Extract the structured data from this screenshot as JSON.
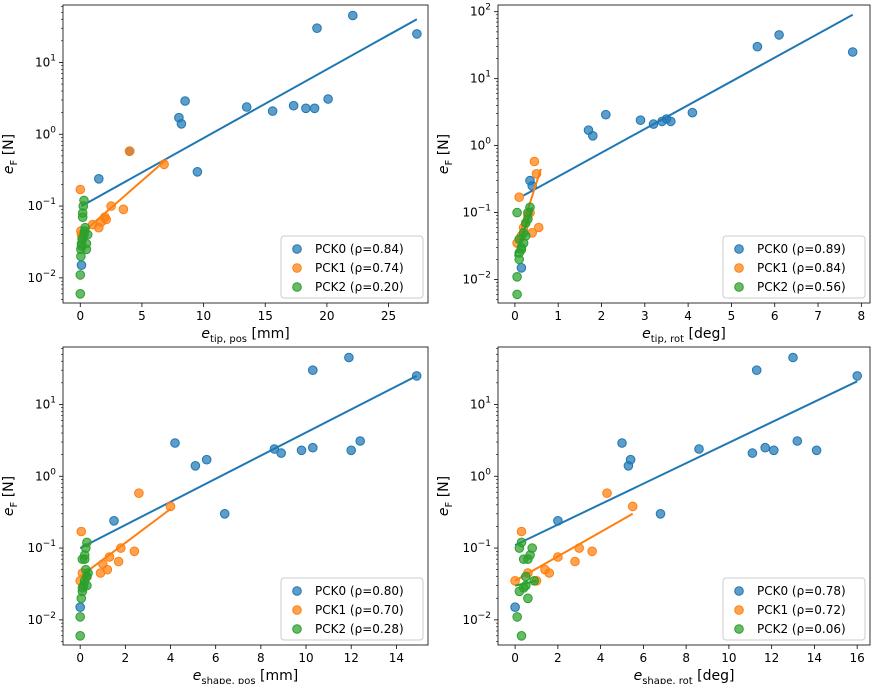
{
  "chart_data": [
    {
      "type": "scatter",
      "xlabel": {
        "base": "e",
        "sub": "tip, pos",
        "unit": " [mm]"
      },
      "ylabel": {
        "base": "e",
        "sub": "F",
        "unit": " [N]"
      },
      "xlim": [
        -1.4,
        28.2
      ],
      "xticks": [
        0,
        5,
        10,
        15,
        20,
        25
      ],
      "ylim_log10": [
        -2.35,
        1.8
      ],
      "yticks_exp": [
        -2,
        -1,
        0,
        1
      ],
      "legend_position": "lower-right",
      "series": [
        {
          "name": "PCK0",
          "label": "PCK0 (ρ=0.84)",
          "color": "#1f77b4",
          "x": [
            0.1,
            1.5,
            4.0,
            8.0,
            8.2,
            8.5,
            9.5,
            13.5,
            15.6,
            17.3,
            18.3,
            19.0,
            19.2,
            20.1,
            22.1,
            27.3
          ],
          "y": [
            0.015,
            0.24,
            0.58,
            1.7,
            1.4,
            2.9,
            0.3,
            2.4,
            2.1,
            2.5,
            2.3,
            2.3,
            30.0,
            3.1,
            45.0,
            25.0
          ],
          "fit_x": [
            0.1,
            27.3
          ],
          "fit_y": [
            0.1,
            40
          ]
        },
        {
          "name": "PCK1",
          "label": "PCK1 (ρ=0.74)",
          "color": "#ff7f0e",
          "x": [
            0.0,
            0.05,
            0.1,
            0.2,
            1.0,
            1.5,
            1.7,
            2.0,
            2.1,
            2.5,
            3.5,
            4.0,
            6.8
          ],
          "y": [
            0.17,
            0.045,
            0.04,
            0.035,
            0.055,
            0.05,
            0.06,
            0.07,
            0.065,
            0.1,
            0.09,
            0.58,
            0.38
          ],
          "fit_x": [
            0.0,
            7.0
          ],
          "fit_y": [
            0.04,
            0.45
          ]
        },
        {
          "name": "PCK2",
          "label": "PCK2 (ρ=0.20)",
          "color": "#2ca02c",
          "x": [
            0.0,
            0.0,
            0.05,
            0.05,
            0.1,
            0.1,
            0.15,
            0.2,
            0.2,
            0.25,
            0.3,
            0.3,
            0.35,
            0.4,
            0.5,
            0.5,
            0.6
          ],
          "y": [
            0.006,
            0.011,
            0.02,
            0.025,
            0.028,
            0.03,
            0.035,
            0.07,
            0.08,
            0.1,
            0.12,
            0.04,
            0.045,
            0.05,
            0.025,
            0.03,
            0.04
          ],
          "fit_x": [
            0.0,
            0.6
          ],
          "fit_y": [
            0.03,
            0.045
          ]
        }
      ]
    },
    {
      "type": "scatter",
      "xlabel": {
        "base": "e",
        "sub": "tip, rot",
        "unit": " [deg]"
      },
      "ylabel": {
        "base": "e",
        "sub": "F",
        "unit": " [N]"
      },
      "xlim": [
        -0.39,
        8.2
      ],
      "xticks": [
        0,
        1,
        2,
        3,
        4,
        5,
        6,
        7,
        8
      ],
      "ylim_log10": [
        -2.35,
        2.1
      ],
      "yticks_exp": [
        -2,
        -1,
        0,
        1,
        2
      ],
      "legend_position": "lower-right",
      "series": [
        {
          "name": "PCK0",
          "label": "PCK0 (ρ=0.89)",
          "color": "#1f77b4",
          "x": [
            0.15,
            0.35,
            0.4,
            1.7,
            1.8,
            2.1,
            2.9,
            3.2,
            3.4,
            3.5,
            3.6,
            4.1,
            5.6,
            6.1,
            7.8
          ],
          "y": [
            0.015,
            0.3,
            0.25,
            1.7,
            1.4,
            2.9,
            2.4,
            2.1,
            2.3,
            2.5,
            2.3,
            3.1,
            30.0,
            45.0,
            25.0
          ],
          "fit_x": [
            0.2,
            7.8
          ],
          "fit_y": [
            0.18,
            90
          ]
        },
        {
          "name": "PCK1",
          "label": "PCK1 (ρ=0.84)",
          "color": "#ff7f0e",
          "x": [
            0.05,
            0.1,
            0.15,
            0.2,
            0.25,
            0.3,
            0.35,
            0.4,
            0.45,
            0.5,
            0.55
          ],
          "y": [
            0.035,
            0.17,
            0.045,
            0.06,
            0.07,
            0.09,
            0.1,
            0.05,
            0.58,
            0.38,
            0.06
          ],
          "fit_x": [
            0.05,
            0.6
          ],
          "fit_y": [
            0.035,
            0.45
          ]
        },
        {
          "name": "PCK2",
          "label": "PCK2 (ρ=0.56)",
          "color": "#2ca02c",
          "x": [
            0.05,
            0.05,
            0.1,
            0.1,
            0.15,
            0.15,
            0.2,
            0.25,
            0.3,
            0.3,
            0.35,
            0.05,
            0.1,
            0.2,
            0.25
          ],
          "y": [
            0.006,
            0.011,
            0.02,
            0.025,
            0.028,
            0.03,
            0.035,
            0.07,
            0.08,
            0.1,
            0.12,
            0.1,
            0.04,
            0.05,
            0.045
          ],
          "fit_x": [
            0.0,
            0.4
          ],
          "fit_y": [
            0.022,
            0.12
          ]
        }
      ]
    },
    {
      "type": "scatter",
      "xlabel": {
        "base": "e",
        "sub": "shape, pos",
        "unit": " [mm]"
      },
      "ylabel": {
        "base": "e",
        "sub": "F",
        "unit": " [N]"
      },
      "xlim": [
        -0.76,
        15.4
      ],
      "xticks": [
        0,
        2,
        4,
        6,
        8,
        10,
        12,
        14
      ],
      "ylim_log10": [
        -2.35,
        1.8
      ],
      "yticks_exp": [
        -2,
        -1,
        0,
        1
      ],
      "legend_position": "lower-right",
      "series": [
        {
          "name": "PCK0",
          "label": "PCK0 (ρ=0.80)",
          "color": "#1f77b4",
          "x": [
            0.0,
            1.5,
            4.2,
            5.1,
            5.6,
            6.4,
            8.6,
            8.9,
            9.8,
            10.3,
            10.3,
            12.0,
            11.9,
            12.4,
            14.9
          ],
          "y": [
            0.015,
            0.24,
            2.9,
            1.4,
            1.7,
            0.3,
            2.4,
            2.1,
            2.3,
            2.5,
            30.0,
            2.3,
            45.0,
            3.1,
            25.0
          ],
          "fit_x": [
            0.0,
            14.9
          ],
          "fit_y": [
            0.1,
            25
          ]
        },
        {
          "name": "PCK1",
          "label": "PCK1 (ρ=0.70)",
          "color": "#ff7f0e",
          "x": [
            0.0,
            0.05,
            0.1,
            0.3,
            0.9,
            1.0,
            1.2,
            1.3,
            1.7,
            1.8,
            2.4,
            2.6,
            4.0
          ],
          "y": [
            0.035,
            0.17,
            0.045,
            0.04,
            0.045,
            0.06,
            0.05,
            0.075,
            0.065,
            0.1,
            0.09,
            0.58,
            0.38
          ],
          "fit_x": [
            0.0,
            4.0
          ],
          "fit_y": [
            0.04,
            0.35
          ]
        },
        {
          "name": "PCK2",
          "label": "PCK2 (ρ=0.28)",
          "color": "#2ca02c",
          "x": [
            0.0,
            0.0,
            0.05,
            0.1,
            0.1,
            0.15,
            0.2,
            0.2,
            0.25,
            0.3,
            0.3,
            0.35,
            0.1,
            0.2,
            0.3,
            0.25
          ],
          "y": [
            0.006,
            0.011,
            0.02,
            0.025,
            0.028,
            0.03,
            0.07,
            0.08,
            0.1,
            0.12,
            0.04,
            0.045,
            0.07,
            0.035,
            0.03,
            0.05
          ],
          "fit_x": [
            0.0,
            0.4
          ],
          "fit_y": [
            0.03,
            0.045
          ]
        }
      ]
    },
    {
      "type": "scatter",
      "xlabel": {
        "base": "e",
        "sub": "shape, rot",
        "unit": " [deg]"
      },
      "ylabel": {
        "base": "e",
        "sub": "F",
        "unit": " [N]"
      },
      "xlim": [
        -0.8,
        16.6
      ],
      "xticks": [
        0,
        2,
        4,
        6,
        8,
        10,
        12,
        14,
        16
      ],
      "ylim_log10": [
        -2.35,
        1.8
      ],
      "yticks_exp": [
        -2,
        -1,
        0,
        1
      ],
      "legend_position": "lower-right",
      "series": [
        {
          "name": "PCK0",
          "label": "PCK0 (ρ=0.78)",
          "color": "#1f77b4",
          "x": [
            0.0,
            2.0,
            5.0,
            5.3,
            5.4,
            6.8,
            8.6,
            11.1,
            11.3,
            11.7,
            12.1,
            13.0,
            13.2,
            14.1,
            16.0
          ],
          "y": [
            0.015,
            0.24,
            2.9,
            1.4,
            1.7,
            0.3,
            2.4,
            2.1,
            30.0,
            2.5,
            2.3,
            45.0,
            3.1,
            2.3,
            25.0
          ],
          "fit_x": [
            0.0,
            16.0
          ],
          "fit_y": [
            0.11,
            21
          ]
        },
        {
          "name": "PCK1",
          "label": "PCK1 (ρ=0.72)",
          "color": "#ff7f0e",
          "x": [
            0.0,
            0.3,
            0.6,
            1.0,
            1.4,
            1.6,
            2.0,
            2.8,
            3.0,
            3.6,
            4.3,
            5.5
          ],
          "y": [
            0.035,
            0.17,
            0.045,
            0.035,
            0.05,
            0.045,
            0.075,
            0.065,
            0.1,
            0.09,
            0.58,
            0.38
          ],
          "fit_x": [
            0.0,
            5.5
          ],
          "fit_y": [
            0.035,
            0.3
          ]
        },
        {
          "name": "PCK2",
          "label": "PCK2 (ρ=0.06)",
          "color": "#2ca02c",
          "x": [
            0.3,
            0.1,
            0.2,
            0.4,
            0.5,
            0.6,
            0.7,
            0.8,
            0.9,
            0.2,
            0.3,
            0.4,
            0.5,
            0.6
          ],
          "y": [
            0.006,
            0.011,
            0.025,
            0.028,
            0.03,
            0.07,
            0.08,
            0.1,
            0.035,
            0.1,
            0.12,
            0.07,
            0.04,
            0.02
          ],
          "fit_x": [
            0.0,
            1.0
          ],
          "fit_y": [
            0.03,
            0.035
          ]
        }
      ]
    }
  ]
}
